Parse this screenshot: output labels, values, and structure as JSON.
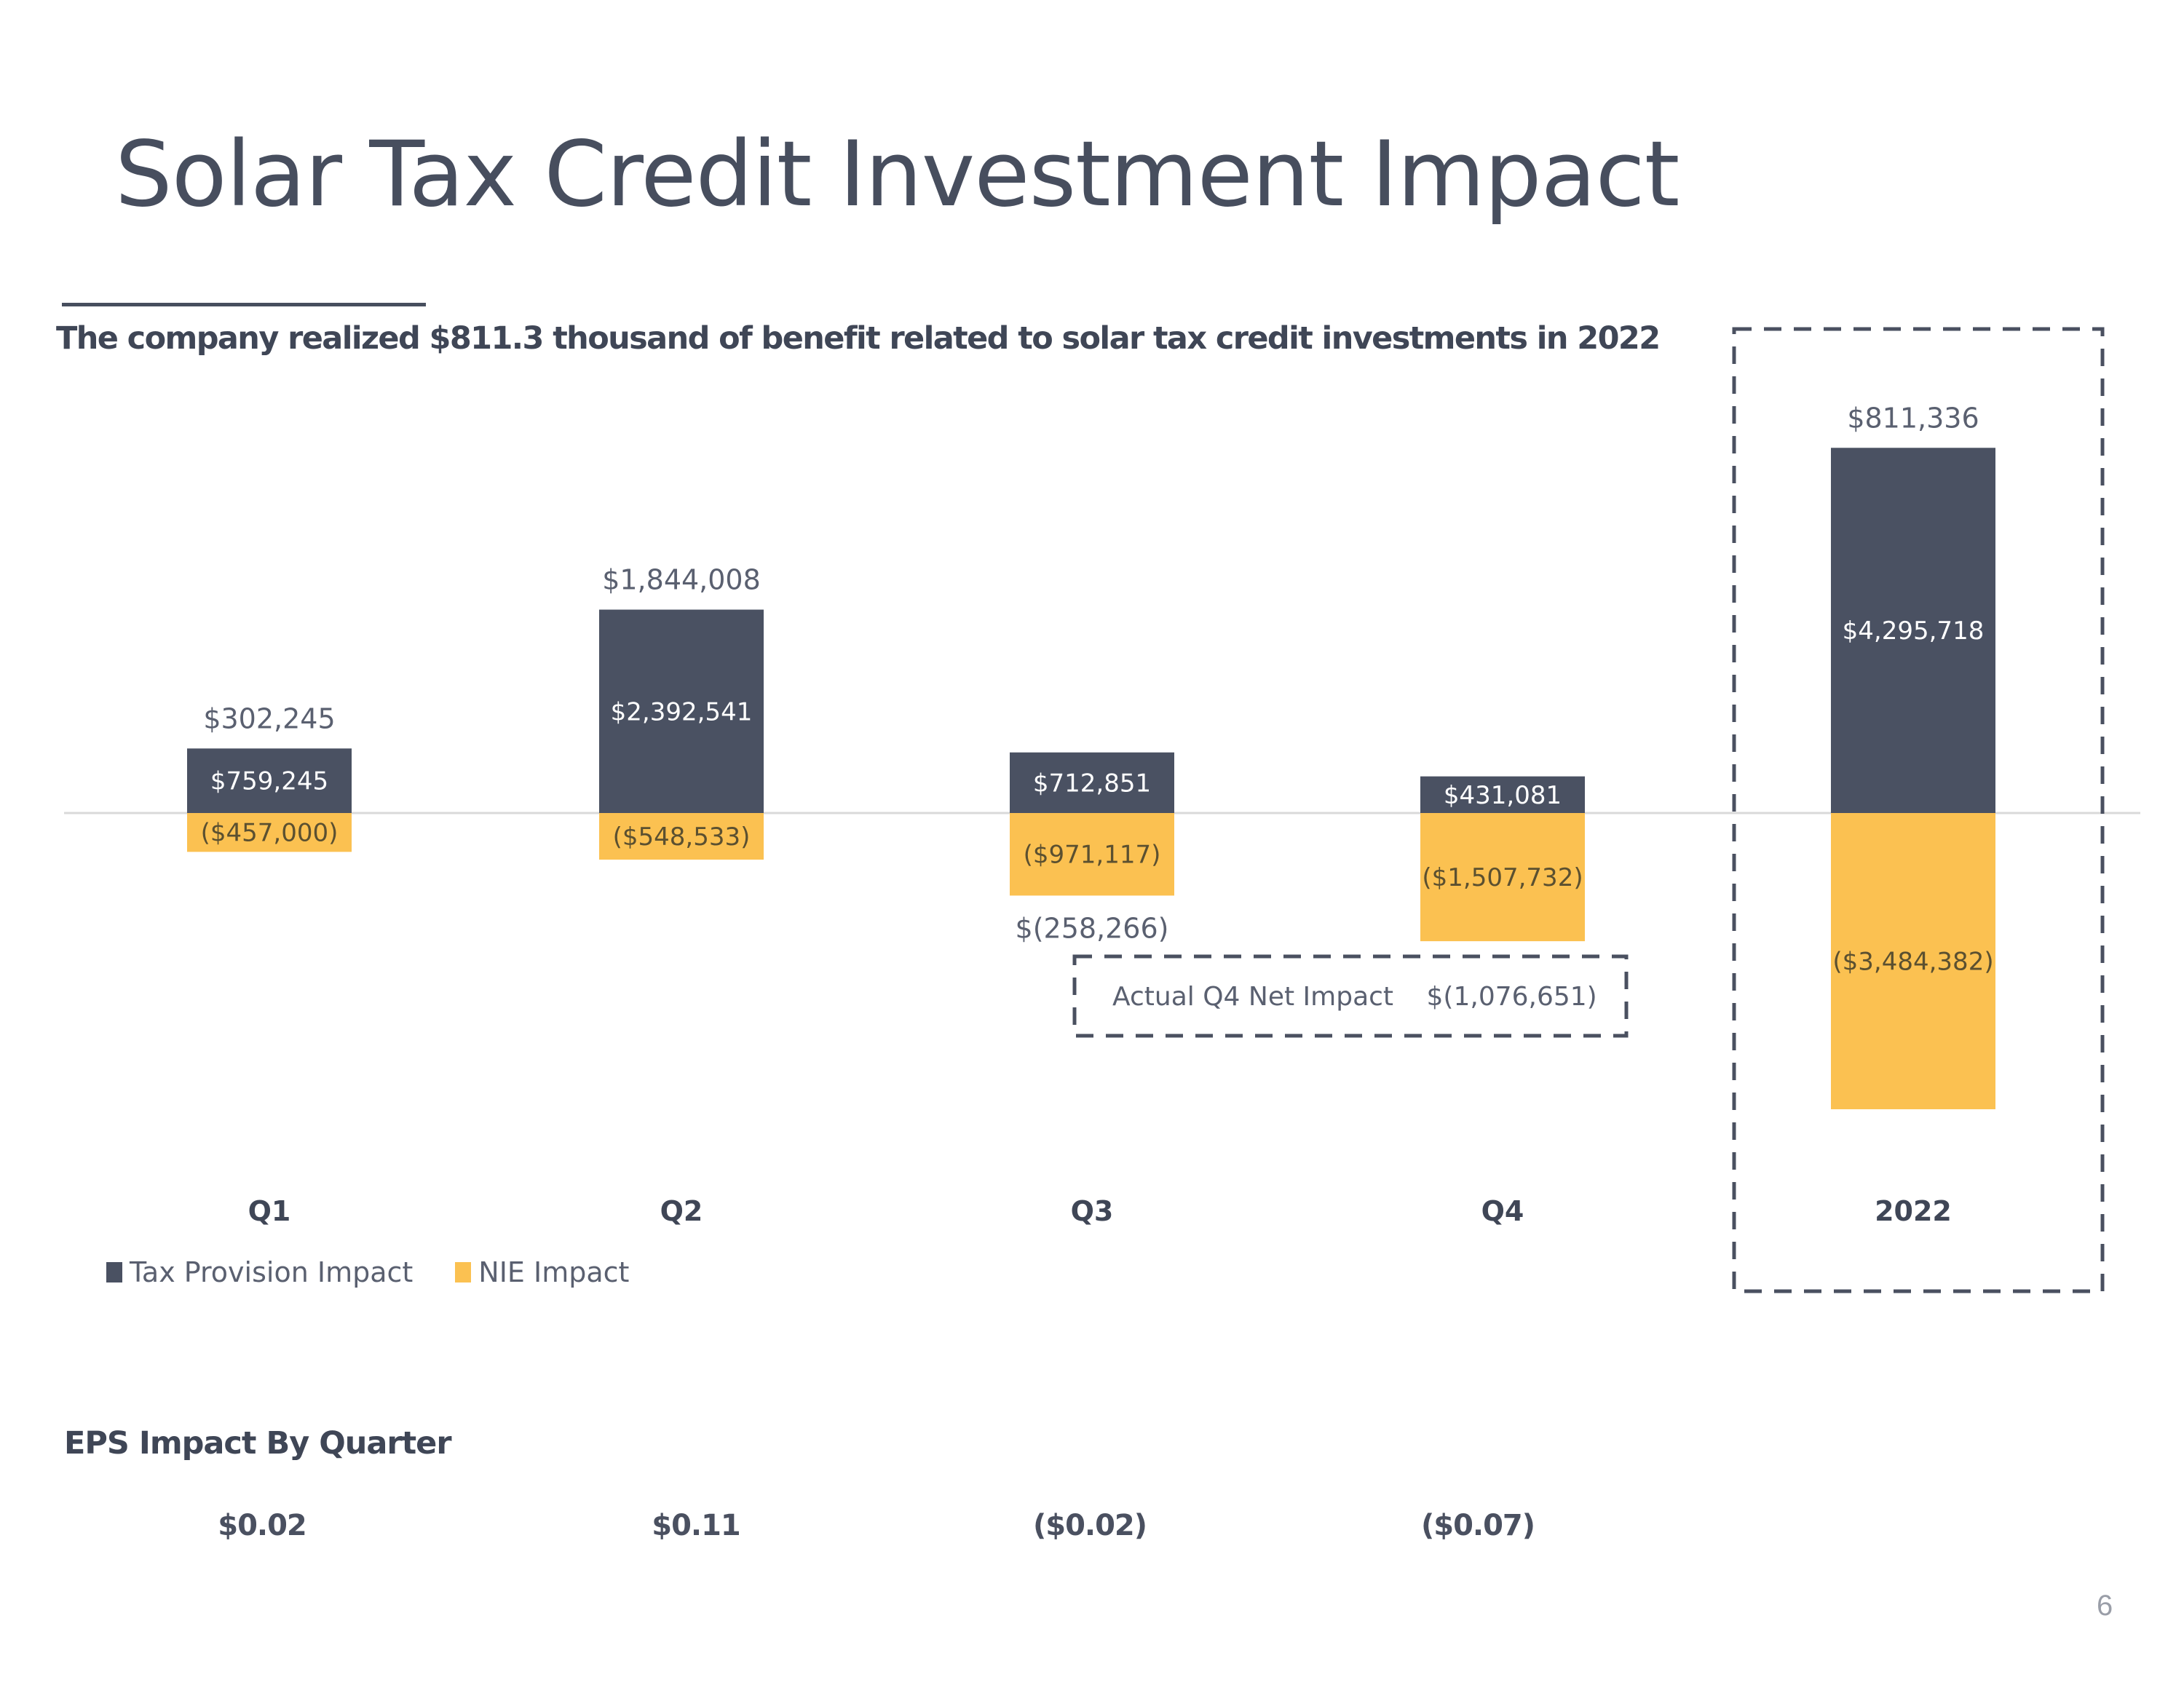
{
  "title": "Solar Tax Credit Investment Impact",
  "subtitle": "The company realized $811.3 thousand of benefit related to solar tax credit investments in 2022",
  "colors": {
    "tax_provision": "#4a5162",
    "nie": "#fbc151",
    "text_dark": "#3f4656",
    "axis": "#d9d9d9",
    "dash": "#4a5060"
  },
  "legend": [
    {
      "label": "Tax Provision Impact",
      "color": "#4a5162"
    },
    {
      "label": "NIE Impact",
      "color": "#fbc151"
    }
  ],
  "net_box": {
    "label": "Actual Q4 Net Impact",
    "value": "$(1,076,651)"
  },
  "eps": {
    "title": "EPS Impact By Quarter",
    "values": [
      "$0.02",
      "$0.11",
      "($0.02)",
      "($0.07)"
    ]
  },
  "page_number": "6",
  "chart_data": {
    "type": "bar",
    "stacked": true,
    "title": "",
    "xlabel": "",
    "ylabel": "",
    "categories": [
      "Q1",
      "Q2",
      "Q3",
      "Q4",
      "2022"
    ],
    "series": [
      {
        "name": "Tax Provision Impact",
        "values": [
          759245,
          2392541,
          712851,
          431081,
          4295718
        ],
        "labels": [
          "$759,245",
          "$2,392,541",
          "$712,851",
          "$431,081",
          "$4,295,718"
        ]
      },
      {
        "name": "NIE Impact",
        "values": [
          -457000,
          -548533,
          -971117,
          -1507732,
          -3484382
        ],
        "labels": [
          "($457,000)",
          "($548,533)",
          "($971,117)",
          "($1,507,732)",
          "($3,484,382)"
        ]
      }
    ],
    "net_totals": [
      302245,
      1844008,
      -258266,
      -1076651,
      811336
    ],
    "net_total_labels": [
      "$302,245",
      "$1,844,008",
      "$(258,266)",
      null,
      "$811,336"
    ],
    "highlighted_category": "2022",
    "grid": false,
    "legend_position": "bottom-left",
    "ylim": [
      -3500000,
      4300000
    ]
  }
}
